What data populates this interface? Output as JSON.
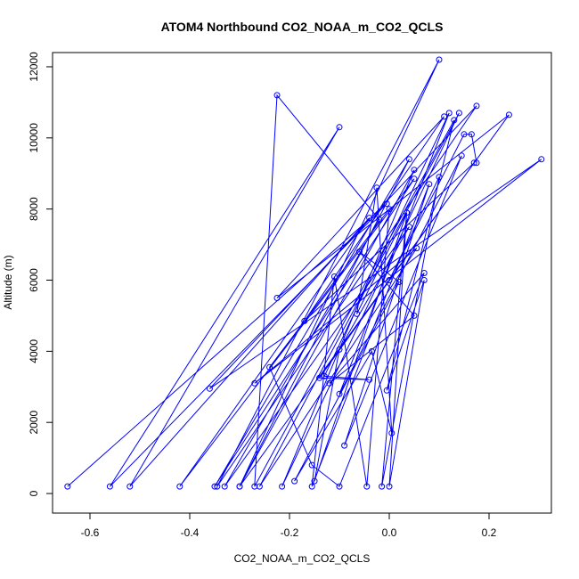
{
  "chart_data": {
    "type": "line",
    "title": "ATOM4 Northbound CO2_NOAA_m_CO2_QCLS",
    "xlabel": "CO2_NOAA_m_CO2_QCLS",
    "ylabel": "Altitude (m)",
    "xlim": [
      -0.675,
      0.325
    ],
    "ylim": [
      -550,
      12400
    ],
    "x_ticks": [
      -0.6,
      -0.4,
      -0.2,
      0.0,
      0.2
    ],
    "x_tick_labels": [
      "-0.6",
      "-0.4",
      "-0.2",
      "0.0",
      "0.2"
    ],
    "y_ticks": [
      0,
      2000,
      4000,
      6000,
      8000,
      10000,
      12000
    ],
    "y_tick_labels": [
      "0",
      "2000",
      "4000",
      "6000",
      "8000",
      "10000",
      "12000"
    ],
    "grid": false,
    "legend": "none",
    "series_color": "#0000ff",
    "series": [
      {
        "points": [
          [
            -0.645,
            200
          ],
          [
            -0.005,
            8150
          ],
          [
            -0.56,
            200
          ],
          [
            -0.1,
            10300
          ],
          [
            -0.52,
            200
          ],
          [
            -0.04,
            7750
          ],
          [
            -0.42,
            200
          ],
          [
            0.05,
            8850
          ],
          [
            -0.35,
            200
          ],
          [
            0.04,
            9400
          ],
          [
            -0.3,
            200
          ],
          [
            0.1,
            12200
          ],
          [
            -0.345,
            200
          ],
          [
            0.175,
            10900
          ],
          [
            -0.36,
            2950
          ],
          [
            0.305,
            9400
          ],
          [
            -0.27,
            3100
          ],
          [
            0.055,
            6900
          ],
          [
            -0.26,
            200
          ],
          [
            0.14,
            10700
          ],
          [
            -0.215,
            200
          ],
          [
            0.05,
            9100
          ],
          [
            -0.3,
            200
          ],
          [
            0.24,
            10650
          ],
          [
            -0.225,
            5500
          ],
          [
            0.11,
            10600
          ],
          [
            -0.17,
            4850
          ],
          [
            0.17,
            9300
          ],
          [
            -0.14,
            3250
          ],
          [
            -0.04,
            3200
          ],
          [
            -0.13,
            3300
          ],
          [
            0.12,
            10700
          ],
          [
            -0.1,
            2800
          ],
          [
            0.145,
            9500
          ],
          [
            -0.09,
            1350
          ],
          [
            0.08,
            8700
          ],
          [
            -0.155,
            200
          ],
          [
            -0.11,
            6100
          ],
          [
            -0.045,
            200
          ],
          [
            0.0,
            8000
          ],
          [
            -0.24,
            3550
          ],
          [
            -0.155,
            800
          ],
          [
            -0.1,
            200
          ],
          [
            0.07,
            6200
          ],
          [
            -0.12,
            3100
          ],
          [
            0.05,
            5000
          ],
          [
            -0.06,
            6800
          ],
          [
            0.02,
            5950
          ],
          [
            -0.19,
            350
          ],
          [
            -0.035,
            4000
          ],
          [
            0.005,
            1700
          ],
          [
            -0.025,
            8600
          ],
          [
            -0.065,
            5050
          ],
          [
            0.035,
            7900
          ],
          [
            0.0,
            200
          ],
          [
            0.07,
            6000
          ],
          [
            -0.005,
            2900
          ],
          [
            0.13,
            10500
          ],
          [
            -0.27,
            200
          ],
          [
            -0.225,
            11200
          ],
          [
            -0.02,
            7700
          ],
          [
            -0.33,
            200
          ],
          [
            0.04,
            7500
          ],
          [
            -0.1,
            4050
          ],
          [
            -0.15,
            350
          ],
          [
            0.035,
            7900
          ],
          [
            -0.015,
            200
          ],
          [
            0.1,
            8900
          ],
          [
            0.0,
            6000
          ],
          [
            0.15,
            10100
          ],
          [
            0.165,
            10100
          ],
          [
            0.175,
            9300
          ]
        ]
      }
    ]
  }
}
